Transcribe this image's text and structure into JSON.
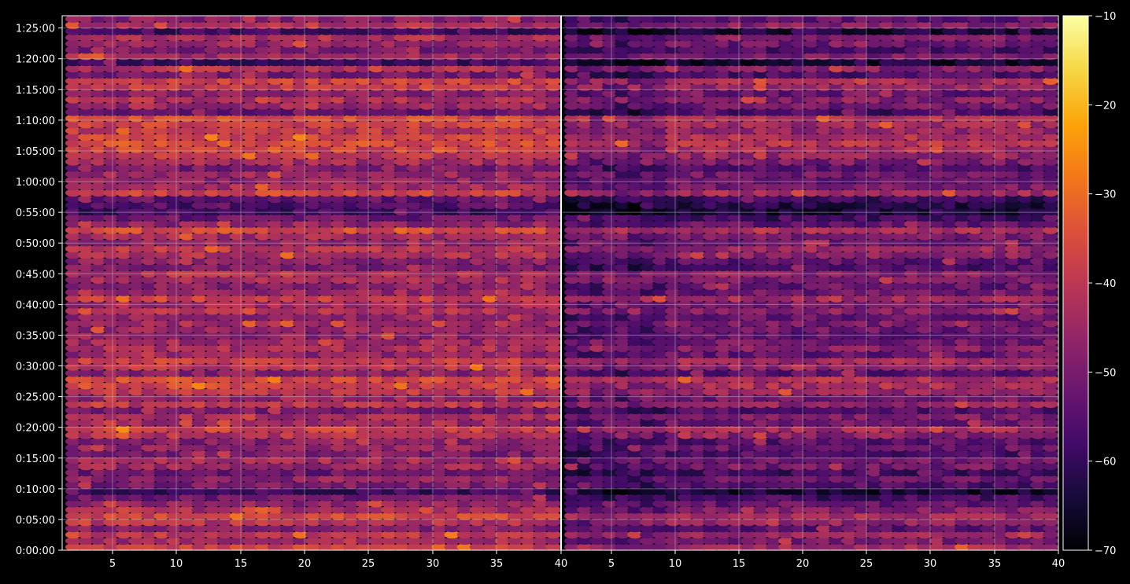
{
  "chart_data": {
    "type": "heatmap",
    "title": "",
    "xlabel": "",
    "ylabel": "",
    "grid": true,
    "panels": [
      {
        "name": "",
        "x_range": [
          1,
          40
        ]
      },
      {
        "name": "",
        "x_range": [
          1,
          40
        ]
      }
    ],
    "x_ticks": [
      5,
      10,
      15,
      20,
      25,
      30,
      35,
      40
    ],
    "y_range_seconds": [
      0,
      5220
    ],
    "y_tick_labels": [
      "0:00:00",
      "0:05:00",
      "0:10:00",
      "0:15:00",
      "0:20:00",
      "0:25:00",
      "0:30:00",
      "0:35:00",
      "0:40:00",
      "0:45:00",
      "0:50:00",
      "0:55:00",
      "1:00:00",
      "1:05:00",
      "1:10:00",
      "1:15:00",
      "1:20:00",
      "1:25:00"
    ],
    "colorbar": {
      "colormap": "inferno",
      "range": [
        -70,
        -10
      ],
      "ticks": [
        -10,
        -20,
        -30,
        -40,
        -50,
        -60,
        -70
      ],
      "tick_labels": [
        "−10",
        "−20",
        "−30",
        "−40",
        "−50",
        "−60",
        "−70"
      ]
    },
    "row_levels_note_free": true,
    "rows": [
      {
        "t": 1,
        "v": -38
      },
      {
        "t": 2,
        "v": -44
      },
      {
        "t": 3,
        "v": -40
      },
      {
        "t": 4,
        "v": -48
      },
      {
        "t": 5,
        "v": -41
      },
      {
        "t": 6,
        "v": -37
      },
      {
        "t": 7,
        "v": -43
      },
      {
        "t": 8,
        "v": -47
      },
      {
        "t": 9,
        "v": -52
      },
      {
        "t": 10,
        "v": -58
      },
      {
        "t": 11,
        "v": -50
      },
      {
        "t": 12,
        "v": -47
      },
      {
        "t": 13,
        "v": -52
      },
      {
        "t": 14,
        "v": -45
      },
      {
        "t": 15,
        "v": -44
      },
      {
        "t": 16,
        "v": -50
      },
      {
        "t": 17,
        "v": -47
      },
      {
        "t": 18,
        "v": -49
      },
      {
        "t": 19,
        "v": -42
      },
      {
        "t": 20,
        "v": -38
      },
      {
        "t": 21,
        "v": -45
      },
      {
        "t": 22,
        "v": -44
      },
      {
        "t": 23,
        "v": -50
      },
      {
        "t": 24,
        "v": -40
      },
      {
        "t": 25,
        "v": -46
      },
      {
        "t": 26,
        "v": -40
      },
      {
        "t": 27,
        "v": -37
      },
      {
        "t": 28,
        "v": -36
      },
      {
        "t": 29,
        "v": -48
      },
      {
        "t": 30,
        "v": -41
      },
      {
        "t": 31,
        "v": -38
      },
      {
        "t": 32,
        "v": -47
      },
      {
        "t": 33,
        "v": -43
      },
      {
        "t": 34,
        "v": -45
      },
      {
        "t": 35,
        "v": -47
      },
      {
        "t": 36,
        "v": -46
      },
      {
        "t": 37,
        "v": -44
      },
      {
        "t": 38,
        "v": -47
      },
      {
        "t": 39,
        "v": -42
      },
      {
        "t": 40,
        "v": -44
      },
      {
        "t": 41,
        "v": -38
      },
      {
        "t": 42,
        "v": -46
      },
      {
        "t": 43,
        "v": -48
      },
      {
        "t": 44,
        "v": -44
      },
      {
        "t": 45,
        "v": -42
      },
      {
        "t": 46,
        "v": -50
      },
      {
        "t": 47,
        "v": -48
      },
      {
        "t": 48,
        "v": -42
      },
      {
        "t": 49,
        "v": -40
      },
      {
        "t": 50,
        "v": -46
      },
      {
        "t": 51,
        "v": -44
      },
      {
        "t": 52,
        "v": -36
      },
      {
        "t": 53,
        "v": -47
      },
      {
        "t": 54,
        "v": -52
      },
      {
        "t": 55,
        "v": -58
      },
      {
        "t": 56,
        "v": -56
      },
      {
        "t": 57,
        "v": -53
      },
      {
        "t": 58,
        "v": -38
      },
      {
        "t": 59,
        "v": -44
      },
      {
        "t": 60,
        "v": -47
      },
      {
        "t": 61,
        "v": -45
      },
      {
        "t": 62,
        "v": -50
      },
      {
        "t": 63,
        "v": -44
      },
      {
        "t": 64,
        "v": -40
      },
      {
        "t": 65,
        "v": -37
      },
      {
        "t": 66,
        "v": -35
      },
      {
        "t": 67,
        "v": -37
      },
      {
        "t": 68,
        "v": -40
      },
      {
        "t": 69,
        "v": -38
      },
      {
        "t": 70,
        "v": -36
      },
      {
        "t": 71,
        "v": -52
      },
      {
        "t": 72,
        "v": -45
      },
      {
        "t": 73,
        "v": -42
      },
      {
        "t": 74,
        "v": -48
      },
      {
        "t": 75,
        "v": -40
      },
      {
        "t": 76,
        "v": -38
      },
      {
        "t": 77,
        "v": -50
      },
      {
        "t": 78,
        "v": -42
      },
      {
        "t": 79,
        "v": -58
      },
      {
        "t": 80,
        "v": -44
      },
      {
        "t": 81,
        "v": -50
      },
      {
        "t": 82,
        "v": -46
      },
      {
        "t": 83,
        "v": -43
      },
      {
        "t": 84,
        "v": -58
      },
      {
        "t": 85,
        "v": -42
      },
      {
        "t": 86,
        "v": -48
      }
    ]
  }
}
